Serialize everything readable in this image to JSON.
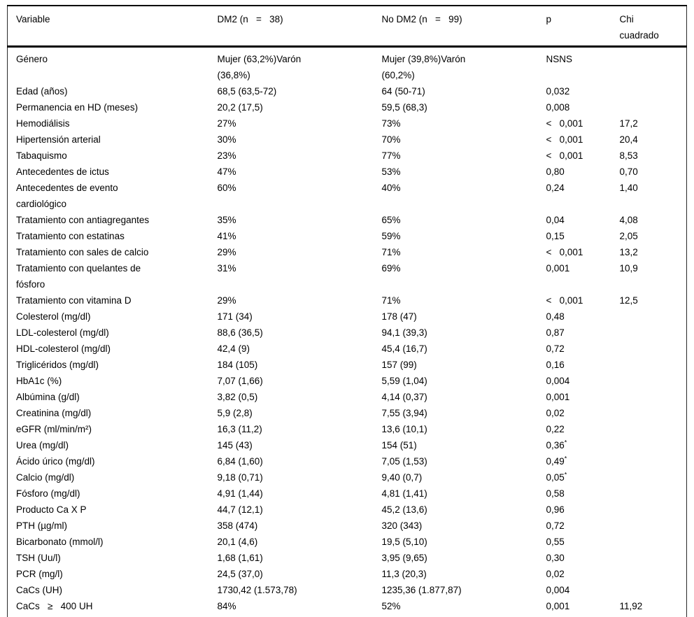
{
  "table": {
    "columns": [
      {
        "key": "variable",
        "label": "Variable"
      },
      {
        "key": "dm2",
        "label": "DM2 (n   =   38)"
      },
      {
        "key": "nodm2",
        "label": "No DM2 (n   =   99)"
      },
      {
        "key": "p",
        "label": "p"
      },
      {
        "key": "chi",
        "label": "Chi\ncuadrado"
      }
    ],
    "rows": [
      {
        "variable": "Género",
        "dm2": "Mujer (63,2%)Varón\n(36,8%)",
        "nodm2": "Mujer (39,8%)Varón\n(60,2%)",
        "p": "NSNS",
        "chi": ""
      },
      {
        "variable": "Edad (años)",
        "dm2": "68,5 (63,5-72)",
        "nodm2": "64 (50-71)",
        "p": "0,032",
        "chi": ""
      },
      {
        "variable": "Permanencia en HD (meses)",
        "dm2": "20,2 (17,5)",
        "nodm2": "59,5 (68,3)",
        "p": "0,008",
        "chi": ""
      },
      {
        "variable": "Hemodiálisis",
        "dm2": "27%",
        "nodm2": "73%",
        "p": "<   0,001",
        "chi": "17,2"
      },
      {
        "variable": "Hipertensión arterial",
        "dm2": "30%",
        "nodm2": "70%",
        "p": "<   0,001",
        "chi": "20,4"
      },
      {
        "variable": "Tabaquismo",
        "dm2": "23%",
        "nodm2": "77%",
        "p": "<   0,001",
        "chi": "8,53"
      },
      {
        "variable": "Antecedentes de ictus",
        "dm2": "47%",
        "nodm2": "53%",
        "p": "0,80",
        "chi": "0,70"
      },
      {
        "variable": "Antecedentes de evento\ncardiológico",
        "dm2": "60%",
        "nodm2": "40%",
        "p": "0,24",
        "chi": "1,40"
      },
      {
        "variable": "Tratamiento con antiagregantes",
        "dm2": "35%",
        "nodm2": "65%",
        "p": "0,04",
        "chi": "4,08"
      },
      {
        "variable": "Tratamiento con estatinas",
        "dm2": "41%",
        "nodm2": "59%",
        "p": "0,15",
        "chi": "2,05"
      },
      {
        "variable": "Tratamiento con sales de calcio",
        "dm2": "29%",
        "nodm2": "71%",
        "p": "<   0,001",
        "chi": "13,2"
      },
      {
        "variable": "Tratamiento con quelantes de\nfósforo",
        "dm2": "31%",
        "nodm2": "69%",
        "p": "0,001",
        "chi": "10,9"
      },
      {
        "variable": "Tratamiento con vitamina D",
        "dm2": "29%",
        "nodm2": "71%",
        "p": "<   0,001",
        "chi": "12,5"
      },
      {
        "variable": "Colesterol (mg/dl)",
        "dm2": "171 (34)",
        "nodm2": "178 (47)",
        "p": "0,48",
        "chi": ""
      },
      {
        "variable": "LDL-colesterol (mg/dl)",
        "dm2": "88,6 (36,5)",
        "nodm2": "94,1 (39,3)",
        "p": "0,87",
        "chi": ""
      },
      {
        "variable": "HDL-colesterol (mg/dl)",
        "dm2": "42,4 (9)",
        "nodm2": "45,4 (16,7)",
        "p": "0,72",
        "chi": ""
      },
      {
        "variable": "Triglicéridos (mg/dl)",
        "dm2": "184 (105)",
        "nodm2": "157 (99)",
        "p": "0,16",
        "chi": ""
      },
      {
        "variable": "HbA1c (%)",
        "dm2": "7,07 (1,66)",
        "nodm2": "5,59 (1,04)",
        "p": "0,004",
        "chi": ""
      },
      {
        "variable": "Albúmina (g/dl)",
        "dm2": "3,82 (0,5)",
        "nodm2": "4,14 (0,37)",
        "p": "0,001",
        "chi": ""
      },
      {
        "variable": "Creatinina (mg/dl)",
        "dm2": "5,9 (2,8)",
        "nodm2": "7,55 (3,94)",
        "p": "0,02",
        "chi": ""
      },
      {
        "variable": "eGFR (ml/min/m²)",
        "dm2": "16,3 (11,2)",
        "nodm2": "13,6 (10,1)",
        "p": "0,22",
        "chi": ""
      },
      {
        "variable": "Urea (mg/dl)",
        "dm2": "145 (43)",
        "nodm2": "154 (51)",
        "p": "0,36*",
        "chi": ""
      },
      {
        "variable": "Ácido úrico (mg/dl)",
        "dm2": "6,84 (1,60)",
        "nodm2": "7,05 (1,53)",
        "p": "0,49*",
        "chi": ""
      },
      {
        "variable": "Calcio (mg/dl)",
        "dm2": "9,18 (0,71)",
        "nodm2": "9,40 (0,7)",
        "p": "0,05*",
        "chi": ""
      },
      {
        "variable": "Fósforo (mg/dl)",
        "dm2": "4,91 (1,44)",
        "nodm2": "4,81 (1,41)",
        "p": "0,58",
        "chi": ""
      },
      {
        "variable": "Producto Ca X P",
        "dm2": "44,7 (12,1)",
        "nodm2": "45,2 (13,6)",
        "p": "0,96",
        "chi": ""
      },
      {
        "variable": "PTH (µg/ml)",
        "dm2": "358 (474)",
        "nodm2": "320 (343)",
        "p": "0,72",
        "chi": ""
      },
      {
        "variable": "Bicarbonato (mmol/l)",
        "dm2": "20,1 (4,6)",
        "nodm2": "19,5 (5,10)",
        "p": "0,55",
        "chi": ""
      },
      {
        "variable": "TSH (Uu/l)",
        "dm2": "1,68 (1,61)",
        "nodm2": "3,95 (9,65)",
        "p": "0,30",
        "chi": ""
      },
      {
        "variable": "PCR (mg/l)",
        "dm2": "24,5 (37,0)",
        "nodm2": "11,3 (20,3)",
        "p": "0,02",
        "chi": ""
      },
      {
        "variable": "CaCs (UH)",
        "dm2": "1730,42 (1.573,78)",
        "nodm2": "1235,36 (1.877,87)",
        "p": "0,004",
        "chi": ""
      },
      {
        "variable": "CaCs   ≥   400 UH",
        "dm2": "84%",
        "nodm2": "52%",
        "p": "0,001",
        "chi": "11,92"
      }
    ]
  }
}
